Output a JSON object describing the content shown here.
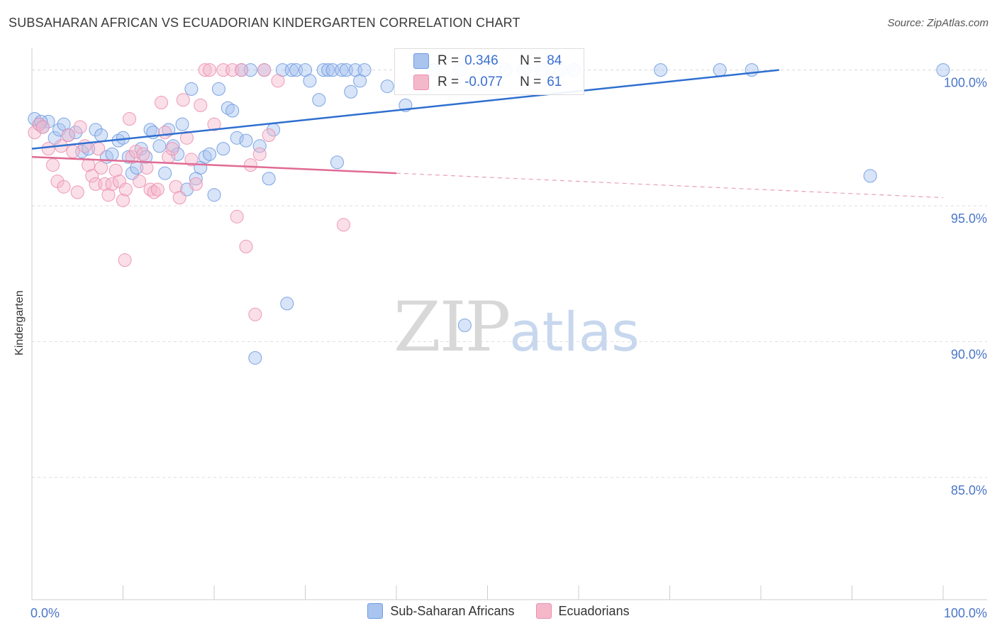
{
  "title": "SUBSAHARAN AFRICAN VS ECUADORIAN KINDERGARTEN CORRELATION CHART",
  "source": "Source: ZipAtlas.com",
  "watermark": {
    "zip": "ZIP",
    "atlas": "atlas"
  },
  "legend_box": {
    "rows": [
      {
        "r_label": "R =",
        "r_value": "0.346",
        "n_label": "N =",
        "n_value": "84",
        "color": "#a9c4ef"
      },
      {
        "r_label": "R =",
        "r_value": "-0.077",
        "n_label": "N =",
        "n_value": "61",
        "color": "#f5b8cb"
      }
    ]
  },
  "chart_data": {
    "type": "scatter",
    "title": "SUBSAHARAN AFRICAN VS ECUADORIAN KINDERGARTEN CORRELATION CHART",
    "xlabel": "",
    "ylabel": "Kindergarten",
    "xlim": [
      0,
      100
    ],
    "ylim": [
      80.5,
      100.8
    ],
    "x_tick_labels": [
      "0.0%",
      "100.0%"
    ],
    "y_ticks": [
      100,
      95,
      90,
      85
    ],
    "y_tick_labels": [
      "100.0%",
      "95.0%",
      "90.0%",
      "85.0%"
    ],
    "grid": true,
    "legend_position": "bottom",
    "series": [
      {
        "name": "Sub-Saharan Africans",
        "color": "#6f9be0",
        "fill": "#a9c4ef",
        "trend": {
          "x": [
            0,
            82
          ],
          "y": [
            97.1,
            100.0
          ],
          "style": "solid"
        },
        "points": [
          [
            0.3,
            98.2
          ],
          [
            0.8,
            98.0
          ],
          [
            1.2,
            97.9
          ],
          [
            1.8,
            98.1
          ],
          [
            2.5,
            97.5
          ],
          [
            3,
            97.8
          ],
          [
            3.5,
            98.0
          ],
          [
            4,
            97.6
          ],
          [
            4.8,
            97.7
          ],
          [
            5.5,
            97.0
          ],
          [
            6.2,
            97.1
          ],
          [
            7,
            97.8
          ],
          [
            7.6,
            97.6
          ],
          [
            8.2,
            96.8
          ],
          [
            8.8,
            96.9
          ],
          [
            9.5,
            97.4
          ],
          [
            10,
            97.5
          ],
          [
            10.6,
            96.8
          ],
          [
            11,
            96.2
          ],
          [
            11.5,
            96.4
          ],
          [
            12,
            97.1
          ],
          [
            12.5,
            96.8
          ],
          [
            13,
            97.8
          ],
          [
            13.3,
            97.7
          ],
          [
            14,
            97.2
          ],
          [
            14.6,
            96.2
          ],
          [
            15,
            97.8
          ],
          [
            15.5,
            97.2
          ],
          [
            16,
            96.9
          ],
          [
            16.5,
            98.0
          ],
          [
            17,
            95.6
          ],
          [
            17.5,
            99.3
          ],
          [
            18,
            96.0
          ],
          [
            18.5,
            96.4
          ],
          [
            19,
            96.8
          ],
          [
            19.5,
            96.9
          ],
          [
            20,
            95.4
          ],
          [
            20.5,
            99.3
          ],
          [
            21,
            97.1
          ],
          [
            21.5,
            98.6
          ],
          [
            22,
            98.5
          ],
          [
            22.5,
            97.5
          ],
          [
            23,
            100
          ],
          [
            23.5,
            97.4
          ],
          [
            24,
            100
          ],
          [
            24.5,
            89.4
          ],
          [
            25,
            97.2
          ],
          [
            25.5,
            100
          ],
          [
            26,
            96.0
          ],
          [
            26.5,
            97.8
          ],
          [
            27.5,
            100
          ],
          [
            28,
            91.4
          ],
          [
            28.5,
            100
          ],
          [
            29,
            100
          ],
          [
            30,
            100
          ],
          [
            30.5,
            99.6
          ],
          [
            31.5,
            98.9
          ],
          [
            32,
            100
          ],
          [
            32.5,
            100
          ],
          [
            33,
            100
          ],
          [
            33.5,
            96.6
          ],
          [
            34,
            100
          ],
          [
            34.5,
            100
          ],
          [
            35,
            99.2
          ],
          [
            35.5,
            100
          ],
          [
            36,
            99.6
          ],
          [
            36.5,
            100
          ],
          [
            39,
            99.4
          ],
          [
            41,
            98.7
          ],
          [
            44,
            100
          ],
          [
            47,
            100
          ],
          [
            47.5,
            90.6
          ],
          [
            50,
            100
          ],
          [
            52,
            100
          ],
          [
            54,
            100
          ],
          [
            56,
            100
          ],
          [
            58,
            100
          ],
          [
            59.5,
            100
          ],
          [
            69,
            100
          ],
          [
            92,
            96.1
          ],
          [
            75.5,
            100
          ],
          [
            79,
            100
          ],
          [
            100,
            100
          ],
          [
            1.0,
            98.1
          ]
        ]
      },
      {
        "name": "Ecuadorians",
        "color": "#ec8fae",
        "fill": "#f5b8cb",
        "trend": {
          "x": [
            0,
            40,
            100
          ],
          "y": [
            96.8,
            96.2,
            95.3
          ],
          "style": "solid-then-dashed"
        },
        "points": [
          [
            0.3,
            97.7
          ],
          [
            0.8,
            98.0
          ],
          [
            1.2,
            97.9
          ],
          [
            1.8,
            97.1
          ],
          [
            2.3,
            96.5
          ],
          [
            2.8,
            95.9
          ],
          [
            3.2,
            97.2
          ],
          [
            3.5,
            95.7
          ],
          [
            4,
            97.6
          ],
          [
            4.5,
            97.0
          ],
          [
            5,
            95.5
          ],
          [
            5.3,
            97.9
          ],
          [
            5.8,
            97.2
          ],
          [
            6.2,
            96.5
          ],
          [
            6.6,
            96.1
          ],
          [
            7,
            95.8
          ],
          [
            7.3,
            97.1
          ],
          [
            7.6,
            96.4
          ],
          [
            8,
            95.8
          ],
          [
            8.4,
            95.4
          ],
          [
            8.8,
            95.8
          ],
          [
            9.2,
            96.3
          ],
          [
            9.6,
            95.9
          ],
          [
            10,
            95.2
          ],
          [
            10.3,
            95.6
          ],
          [
            10.7,
            98.2
          ],
          [
            11,
            96.8
          ],
          [
            11.4,
            97.0
          ],
          [
            11.8,
            95.9
          ],
          [
            12.2,
            96.9
          ],
          [
            12.6,
            96.4
          ],
          [
            13,
            95.6
          ],
          [
            13.4,
            95.5
          ],
          [
            13.8,
            95.6
          ],
          [
            14.2,
            98.8
          ],
          [
            14.6,
            97.7
          ],
          [
            15,
            96.8
          ],
          [
            15.4,
            97.1
          ],
          [
            15.8,
            95.7
          ],
          [
            16.2,
            95.3
          ],
          [
            16.6,
            98.9
          ],
          [
            17,
            97.5
          ],
          [
            17.5,
            96.7
          ],
          [
            18,
            95.8
          ],
          [
            18.5,
            98.7
          ],
          [
            19,
            100
          ],
          [
            19.5,
            100
          ],
          [
            20,
            98.0
          ],
          [
            21,
            100
          ],
          [
            22,
            100
          ],
          [
            22.5,
            94.6
          ],
          [
            23,
            100
          ],
          [
            23.5,
            93.5
          ],
          [
            24,
            96.5
          ],
          [
            24.5,
            91.0
          ],
          [
            25,
            96.9
          ],
          [
            25.5,
            100
          ],
          [
            26,
            97.6
          ],
          [
            27,
            99.6
          ],
          [
            34.2,
            94.3
          ],
          [
            10.2,
            93.0
          ]
        ]
      }
    ]
  }
}
